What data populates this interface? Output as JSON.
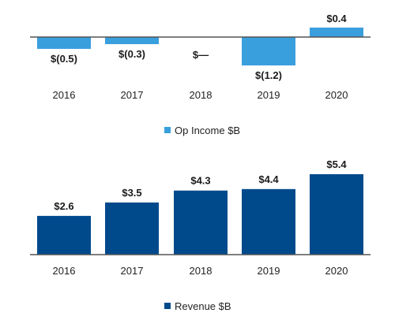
{
  "chart_data": [
    {
      "type": "bar",
      "categories": [
        "2016",
        "2017",
        "2018",
        "2019",
        "2020"
      ],
      "series": [
        {
          "name": "Op Income $B",
          "values": [
            -0.5,
            -0.3,
            0,
            -1.2,
            0.4
          ],
          "labels": [
            "$(0.5)",
            "$(0.3)",
            "$—",
            "$(1.2)",
            "$0.4"
          ],
          "color": "#3a9fdd"
        }
      ],
      "legend": "bottom-center",
      "grid": false
    },
    {
      "type": "bar",
      "categories": [
        "2016",
        "2017",
        "2018",
        "2019",
        "2020"
      ],
      "series": [
        {
          "name": "Revenue $B",
          "values": [
            2.6,
            3.5,
            4.3,
            4.4,
            5.4
          ],
          "labels": [
            "$2.6",
            "$3.5",
            "$4.3",
            "$4.4",
            "$5.4"
          ],
          "color": "#004a8c"
        }
      ],
      "legend": "bottom-center",
      "grid": false
    }
  ]
}
